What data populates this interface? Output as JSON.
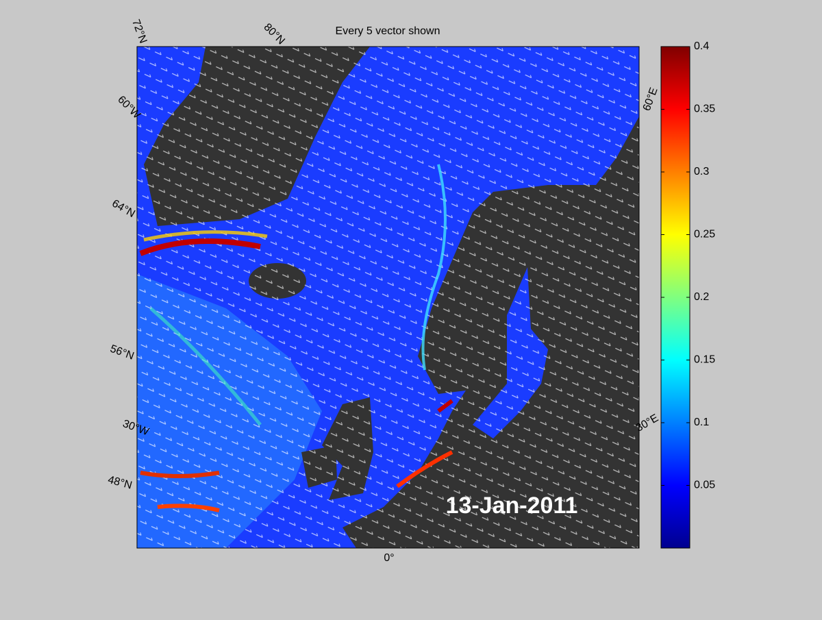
{
  "title": "Every 5 vector shown",
  "date_label": "13-Jan-2011",
  "grid_labels": [
    "72°N",
    "80°N",
    "60°W",
    "64°N",
    "56°N",
    "30°W",
    "48°N",
    "60°E",
    "30°E",
    "0°"
  ],
  "colorbar": {
    "colormap": "jet",
    "lim": [
      0,
      0.4
    ],
    "ticks": [
      0.05,
      0.1,
      0.15,
      0.2,
      0.25,
      0.3,
      0.35,
      0.4
    ]
  }
}
